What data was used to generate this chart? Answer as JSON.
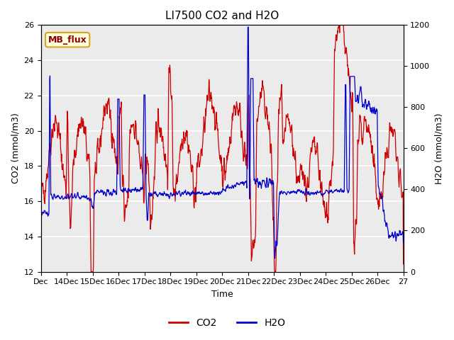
{
  "title": "LI7500 CO2 and H2O",
  "xlabel": "Time",
  "ylabel_left": "CO2 (mmol/m3)",
  "ylabel_right": "H2O (mmol/m3)",
  "ylim_left": [
    12,
    26
  ],
  "ylim_right": [
    0,
    1200
  ],
  "yticks_left": [
    12,
    14,
    16,
    18,
    20,
    22,
    24,
    26
  ],
  "yticks_right": [
    0,
    200,
    400,
    600,
    800,
    1000,
    1200
  ],
  "xtick_labels": [
    "Dec",
    "14Dec",
    "15Dec",
    "16Dec",
    "17Dec",
    "18Dec",
    "19Dec",
    "20Dec",
    "21Dec",
    "22Dec",
    "23Dec",
    "24Dec",
    "25Dec",
    "26Dec",
    "27"
  ],
  "annotation_text": "MB_flux",
  "plot_bg_color": "#ebebeb",
  "co2_color": "#cc0000",
  "h2o_color": "#0000cc",
  "grid_color": "white",
  "title_fontsize": 11,
  "label_fontsize": 9,
  "tick_fontsize": 8
}
